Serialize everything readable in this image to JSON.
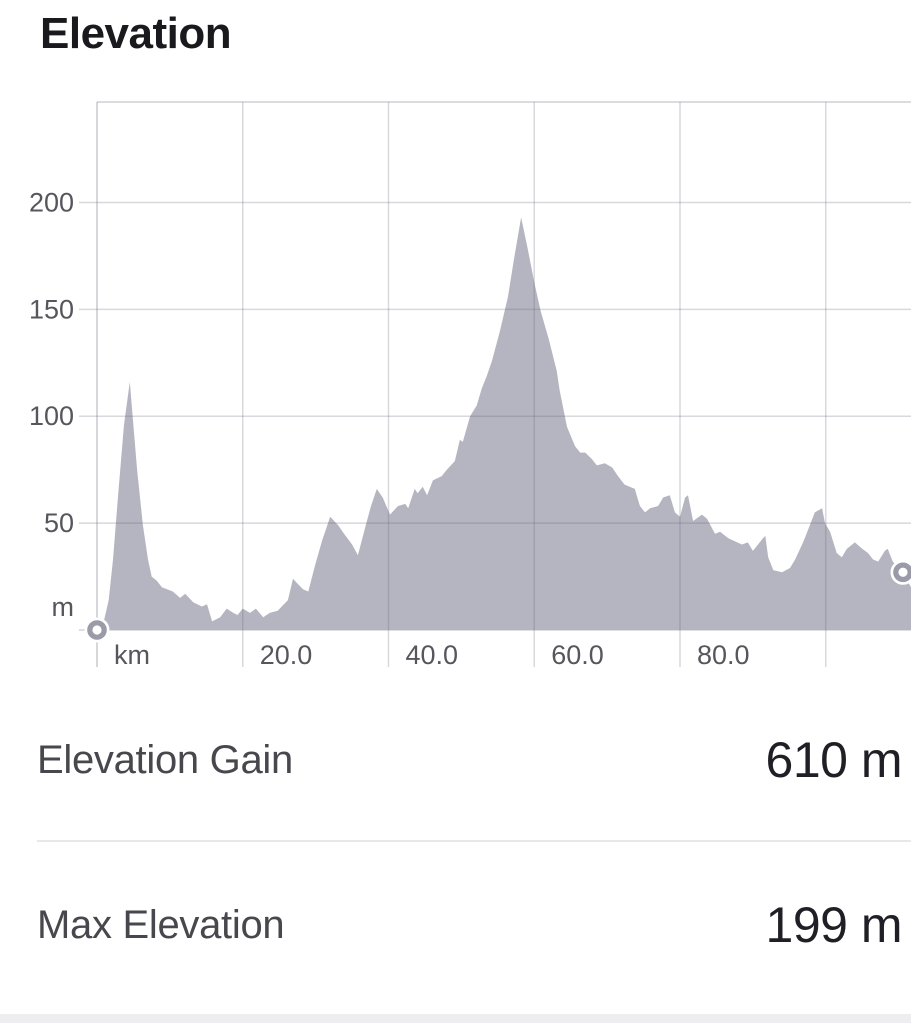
{
  "title": "Elevation",
  "chart_data": {
    "type": "area",
    "title": "Elevation",
    "x_unit": "km",
    "y_unit": "m",
    "grid": true,
    "legend": "none",
    "area_color": "#b5b5c1",
    "grid_color": "rgba(99,99,118,0.25)",
    "axis_text_color": "#56565d",
    "marker_ring_color": "#9a9aa8",
    "x_range_km": [
      0,
      111.7
    ],
    "y_range_m": [
      0,
      247
    ],
    "x_ticks": [
      {
        "value": 0,
        "label": "km"
      },
      {
        "value": 20,
        "label": "20.0"
      },
      {
        "value": 40,
        "label": "40.0"
      },
      {
        "value": 60,
        "label": "60.0"
      },
      {
        "value": 80,
        "label": "80.0"
      },
      {
        "value": 100,
        "label": ""
      }
    ],
    "y_ticks": [
      {
        "value": 200,
        "label": "200"
      },
      {
        "value": 150,
        "label": "150"
      },
      {
        "value": 100,
        "label": "100"
      },
      {
        "value": 50,
        "label": "50"
      },
      {
        "value": 0,
        "label": "m"
      }
    ],
    "profile_km_m": [
      [
        0,
        0
      ],
      [
        1,
        5
      ],
      [
        1.6,
        14
      ],
      [
        2.2,
        33
      ],
      [
        2.9,
        63
      ],
      [
        3.7,
        96
      ],
      [
        4.5,
        116
      ],
      [
        5.5,
        75
      ],
      [
        6.3,
        49
      ],
      [
        7,
        33
      ],
      [
        7.5,
        25
      ],
      [
        8.2,
        23
      ],
      [
        8.9,
        20
      ],
      [
        10.4,
        18
      ],
      [
        11.4,
        15
      ],
      [
        12.1,
        17
      ],
      [
        13.2,
        13
      ],
      [
        14.4,
        11
      ],
      [
        15.1,
        12
      ],
      [
        15.8,
        4
      ],
      [
        16.9,
        6
      ],
      [
        17.8,
        10
      ],
      [
        18.7,
        8
      ],
      [
        19.3,
        7
      ],
      [
        20,
        10
      ],
      [
        21,
        8
      ],
      [
        21.8,
        10
      ],
      [
        22.8,
        6
      ],
      [
        23.7,
        8
      ],
      [
        24.8,
        9
      ],
      [
        26.2,
        14
      ],
      [
        26.9,
        24
      ],
      [
        27.7,
        21
      ],
      [
        28.3,
        19
      ],
      [
        29,
        18
      ],
      [
        29.9,
        30
      ],
      [
        30.9,
        42
      ],
      [
        32,
        53
      ],
      [
        33.1,
        49
      ],
      [
        33.9,
        45
      ],
      [
        35,
        40
      ],
      [
        35.8,
        35
      ],
      [
        36.8,
        48
      ],
      [
        37.6,
        58
      ],
      [
        38.4,
        66
      ],
      [
        39.2,
        62
      ],
      [
        40.2,
        54
      ],
      [
        41.3,
        58
      ],
      [
        42.3,
        59
      ],
      [
        42.7,
        57
      ],
      [
        43.6,
        66
      ],
      [
        44,
        64
      ],
      [
        44.7,
        67
      ],
      [
        45.3,
        63
      ],
      [
        46.1,
        70
      ],
      [
        47.3,
        72
      ],
      [
        48,
        75
      ],
      [
        49.1,
        79
      ],
      [
        49.8,
        89
      ],
      [
        50.2,
        88
      ],
      [
        51.2,
        100
      ],
      [
        52.1,
        105
      ],
      [
        52.8,
        113
      ],
      [
        53.5,
        119
      ],
      [
        54.2,
        126
      ],
      [
        55.3,
        140
      ],
      [
        56.4,
        156
      ],
      [
        57.2,
        173
      ],
      [
        57.8,
        185
      ],
      [
        58.2,
        193
      ],
      [
        59,
        180
      ],
      [
        60.1,
        161
      ],
      [
        60.9,
        149
      ],
      [
        62,
        136
      ],
      [
        63.1,
        121
      ],
      [
        63.5,
        112
      ],
      [
        64.5,
        95
      ],
      [
        65.6,
        86
      ],
      [
        66.3,
        83
      ],
      [
        67,
        83
      ],
      [
        67.9,
        80
      ],
      [
        68.6,
        77
      ],
      [
        69.7,
        78
      ],
      [
        70.7,
        76
      ],
      [
        71.5,
        72
      ],
      [
        72.4,
        68
      ],
      [
        73.8,
        66
      ],
      [
        74.5,
        58
      ],
      [
        75.2,
        55
      ],
      [
        75.9,
        57
      ],
      [
        77,
        58
      ],
      [
        77.7,
        62
      ],
      [
        78.6,
        63
      ],
      [
        79.3,
        55
      ],
      [
        80,
        53
      ],
      [
        80.7,
        62
      ],
      [
        81.1,
        63
      ],
      [
        81.8,
        51
      ],
      [
        83,
        54
      ],
      [
        83.7,
        52
      ],
      [
        84.8,
        45
      ],
      [
        85.5,
        46
      ],
      [
        86.6,
        43
      ],
      [
        88.5,
        40
      ],
      [
        89.3,
        41
      ],
      [
        90,
        37
      ],
      [
        91.4,
        43
      ],
      [
        91.7,
        44
      ],
      [
        92.1,
        34
      ],
      [
        92.8,
        28
      ],
      [
        94,
        27
      ],
      [
        95.1,
        29
      ],
      [
        95.8,
        33
      ],
      [
        96.9,
        41
      ],
      [
        97.6,
        47
      ],
      [
        98.5,
        55
      ],
      [
        99.5,
        57
      ],
      [
        99.9,
        50
      ],
      [
        100.6,
        46
      ],
      [
        101.5,
        36
      ],
      [
        102.2,
        34
      ],
      [
        102.9,
        38
      ],
      [
        104,
        41
      ],
      [
        105,
        38
      ],
      [
        105.8,
        36
      ],
      [
        106.5,
        33
      ],
      [
        107.2,
        32
      ],
      [
        108.1,
        37
      ],
      [
        108.5,
        38
      ],
      [
        109.2,
        32
      ],
      [
        110.1,
        29
      ],
      [
        110.6,
        27
      ],
      [
        111.2,
        23
      ],
      [
        111.7,
        20
      ]
    ],
    "start_marker_km_m": [
      0,
      0
    ],
    "end_marker_km_m": [
      110.6,
      27
    ]
  },
  "stats": [
    {
      "label": "Elevation Gain",
      "value": "610 m"
    },
    {
      "label": "Max Elevation",
      "value": "199 m"
    }
  ]
}
